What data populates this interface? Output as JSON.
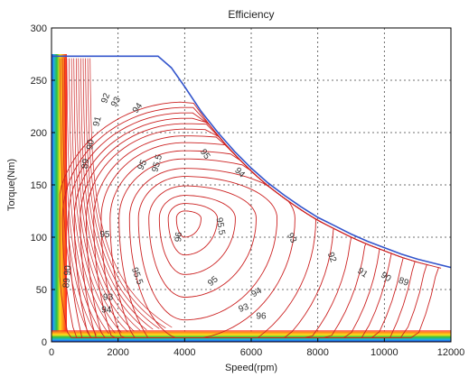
{
  "chart_data": {
    "type": "contour",
    "title": "Efficiency",
    "xlabel": "Speed(rpm)",
    "ylabel": "Torque(Nm)",
    "xlim": [
      0,
      12000
    ],
    "ylim": [
      0,
      300
    ],
    "xticks": [
      "0",
      "2000",
      "4000",
      "6000",
      "8000",
      "10000",
      "12000"
    ],
    "xtick_values": [
      0,
      2000,
      4000,
      6000,
      8000,
      10000,
      12000
    ],
    "yticks": [
      "0",
      "50",
      "100",
      "150",
      "200",
      "250",
      "300"
    ],
    "ytick_values": [
      0,
      50,
      100,
      150,
      200,
      250,
      300
    ],
    "grid": true,
    "grid_style": "dotted",
    "colors": {
      "envelope": "#3355cc",
      "contour": "#cc2222",
      "background": "#ffffff",
      "frame": "#000000",
      "grid": "#444444",
      "low_band": [
        "#ff2020",
        "#ff8c1a",
        "#ffe01a",
        "#30c040",
        "#20b0e0",
        "#2040ff"
      ]
    },
    "torque_envelope": {
      "x": [
        0,
        3200,
        3600,
        4000,
        4500,
        5000,
        5500,
        6000,
        6500,
        7000,
        7500,
        8000,
        8500,
        9000,
        9500,
        10000,
        10500,
        11000,
        11500,
        12000
      ],
      "y": [
        273,
        273,
        262,
        244,
        220,
        200,
        182,
        166,
        152,
        140,
        129,
        119,
        111,
        103,
        96,
        90,
        84,
        79,
        75,
        71
      ]
    },
    "efficiency_peak": {
      "speed": 4000,
      "torque": 118
    },
    "contour_levels": [
      89,
      90,
      91,
      92,
      93,
      94,
      95,
      95.5,
      96
    ],
    "contour_labels": [
      {
        "text": "96",
        "x": 3900,
        "y": 100,
        "rotation": -85
      },
      {
        "text": "95.5",
        "x": 3250,
        "y": 170,
        "rotation": -75
      },
      {
        "text": "95.5",
        "x": 5000,
        "y": 110,
        "rotation": 80
      },
      {
        "text": "95.5",
        "x": 2500,
        "y": 62,
        "rotation": 70
      },
      {
        "text": "95",
        "x": 2800,
        "y": 168,
        "rotation": -65
      },
      {
        "text": "95",
        "x": 4550,
        "y": 178,
        "rotation": 55
      },
      {
        "text": "95",
        "x": 4900,
        "y": 56,
        "rotation": -40
      },
      {
        "text": "94",
        "x": 2650,
        "y": 222,
        "rotation": -55
      },
      {
        "text": "94",
        "x": 5600,
        "y": 160,
        "rotation": 45
      },
      {
        "text": "94",
        "x": 1650,
        "y": 28,
        "rotation": 0
      },
      {
        "text": "94",
        "x": 6200,
        "y": 45,
        "rotation": -30
      },
      {
        "text": "93",
        "x": 2000,
        "y": 228,
        "rotation": -60
      },
      {
        "text": "93",
        "x": 7150,
        "y": 98,
        "rotation": 60
      },
      {
        "text": "93",
        "x": 1700,
        "y": 40,
        "rotation": 0
      },
      {
        "text": "93",
        "x": 5800,
        "y": 30,
        "rotation": -20
      },
      {
        "text": "92",
        "x": 1700,
        "y": 232,
        "rotation": -70
      },
      {
        "text": "92",
        "x": 8350,
        "y": 80,
        "rotation": 70
      },
      {
        "text": "91",
        "x": 1450,
        "y": 210,
        "rotation": -75
      },
      {
        "text": "91",
        "x": 9300,
        "y": 64,
        "rotation": 35
      },
      {
        "text": "90",
        "x": 1250,
        "y": 188,
        "rotation": -80
      },
      {
        "text": "90",
        "x": 10000,
        "y": 60,
        "rotation": 35
      },
      {
        "text": "89",
        "x": 1100,
        "y": 170,
        "rotation": -85
      },
      {
        "text": "89",
        "x": 10550,
        "y": 55,
        "rotation": 20
      },
      {
        "text": "89 90",
        "x": 550,
        "y": 62,
        "rotation": -85
      },
      {
        "text": "95",
        "x": 1600,
        "y": 100,
        "rotation": 0
      },
      {
        "text": "96",
        "x": 6300,
        "y": 22,
        "rotation": 0
      }
    ]
  }
}
